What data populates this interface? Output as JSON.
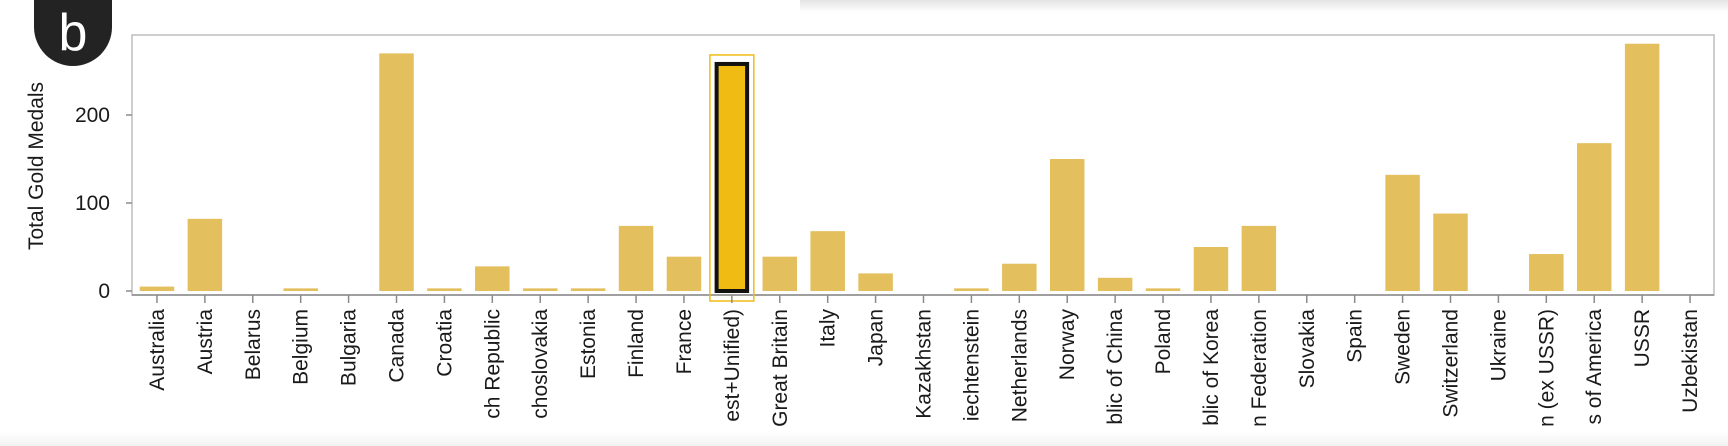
{
  "badge": {
    "letter": "b"
  },
  "colors": {
    "bar": "#e3bf5e",
    "selected_bar": "#f0bc14",
    "selected_outline": "#111111",
    "highlight_box": "#f0bc14"
  },
  "chart_data": {
    "type": "bar",
    "ylabel": "Total Gold Medals",
    "ylim": [
      0,
      300
    ],
    "yticks": [
      0,
      100,
      200
    ],
    "grid": false,
    "selected_category": "Germany (East+West+Unified)",
    "categories": [
      "Australia",
      "Austria",
      "Belarus",
      "Belgium",
      "Bulgaria",
      "Canada",
      "Croatia",
      "Czech Republic",
      "Czechoslovakia",
      "Estonia",
      "Finland",
      "France",
      "Germany (East+West+Unified)",
      "Great Britain",
      "Italy",
      "Japan",
      "Kazakhstan",
      "Liechtenstein",
      "Netherlands",
      "Norway",
      "People's Republic of China",
      "Poland",
      "Republic of Korea",
      "Russian Federation",
      "Slovakia",
      "Spain",
      "Sweden",
      "Switzerland",
      "Ukraine",
      "Unified Team (ex USSR)",
      "United States of America",
      "USSR",
      "Uzbekistan"
    ],
    "values": [
      5,
      82,
      0,
      3,
      0,
      270,
      3,
      28,
      3,
      3,
      74,
      39,
      258,
      39,
      68,
      20,
      0,
      3,
      31,
      150,
      15,
      3,
      50,
      74,
      0,
      0,
      132,
      88,
      0,
      42,
      168,
      281,
      0
    ],
    "tick_labels": [
      "Australia",
      "Austria",
      "Belarus",
      "Belgium",
      "Bulgaria",
      "Canada",
      "Croatia",
      "ch Republic",
      "choslovakia",
      "Estonia",
      "Finland",
      "France",
      "est+Unified)",
      "Great Britain",
      "Italy",
      "Japan",
      "Kazakhstan",
      "iechtenstein",
      "Netherlands",
      "Norway",
      "blic of China",
      "Poland",
      "blic of Korea",
      "n Federation",
      "Slovakia",
      "Spain",
      "Sweden",
      "Switzerland",
      "Ukraine",
      "n (ex USSR)",
      "s of America",
      "USSR",
      "Uzbekistan"
    ]
  }
}
